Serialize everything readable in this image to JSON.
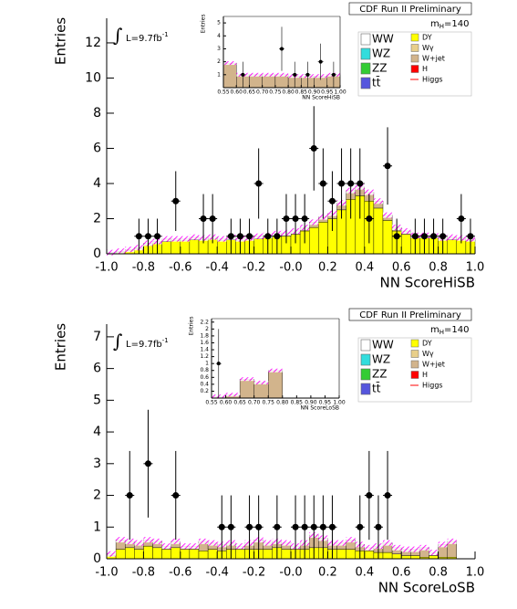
{
  "chart_data": [
    {
      "type": "histogram",
      "header": "CDF Run II Preliminary",
      "lumi": {
        "symbol": "∫",
        "text": "L=9.7fb",
        "sup": "-1"
      },
      "mass": {
        "text": "m",
        "sub": "H",
        "value": "=140"
      },
      "xlabel": "NN ScoreHiSB",
      "ylabel": "Entries",
      "xlim": [
        -1,
        1
      ],
      "ylim": [
        0,
        13.4
      ],
      "xticks": [
        {
          "value": -1,
          "label": "-1.0"
        },
        -0.8,
        -0.6,
        -0.4,
        -0.2,
        {
          "value": 0,
          "label": "-0.0"
        },
        0.2,
        0.4,
        0.6,
        0.8,
        {
          "value": 1,
          "label": "1.0"
        }
      ],
      "yticks": [
        0,
        2,
        4,
        6,
        8,
        10,
        12
      ],
      "bins": [
        -1,
        -0.95,
        -0.9,
        -0.85,
        -0.8,
        -0.75,
        -0.7,
        -0.65,
        -0.6,
        -0.55,
        -0.5,
        -0.45,
        -0.4,
        -0.35,
        -0.3,
        -0.25,
        -0.2,
        -0.15,
        -0.1,
        -0.05,
        0,
        0.05,
        0.1,
        0.15,
        0.2,
        0.25,
        0.3,
        0.35,
        0.4,
        0.45,
        0.5,
        0.55,
        0.6,
        0.65,
        0.7,
        0.75,
        0.8,
        0.85,
        0.9,
        0.95,
        1
      ],
      "series": [
        {
          "name": "DY",
          "color": "#ffff00",
          "values": [
            0.05,
            0.1,
            0.2,
            0.3,
            0.5,
            0.6,
            0.7,
            0.75,
            0.75,
            0.8,
            0.8,
            0.85,
            0.75,
            0.8,
            0.75,
            0.8,
            0.85,
            0.9,
            1.0,
            1.0,
            1.1,
            1.3,
            1.5,
            1.8,
            2.0,
            2.5,
            3.1,
            3.3,
            3.0,
            2.6,
            1.9,
            1.3,
            1.1,
            0.9,
            0.9,
            0.9,
            0.8,
            0.8,
            0.8,
            0.75
          ]
        },
        {
          "name": "W+jet",
          "color": "#d2b48c",
          "values": [
            0.02,
            0.05,
            0.05,
            0.05,
            0.1,
            0.1,
            0.15,
            0.1,
            0.1,
            0.15,
            0.1,
            0.1,
            0.1,
            0.15,
            0.1,
            0.1,
            0.15,
            0.15,
            0.15,
            0.2,
            0.2,
            0.2,
            0.3,
            0.3,
            0.3,
            0.4,
            0.5,
            0.5,
            0.5,
            0.4,
            0.3,
            0.2,
            0.2,
            0.15,
            0.15,
            0.15,
            0.1,
            0.15,
            0.1,
            0.1
          ]
        }
      ],
      "legend_extra": [
        {
          "name": "WW",
          "color": "#ffffff"
        },
        {
          "name": "WZ",
          "color": "#33dddd"
        },
        {
          "name": "ZZ",
          "color": "#33cc33"
        },
        {
          "name": "tt̄",
          "color": "#5555dd"
        },
        {
          "name": "Wγ",
          "color": "#e8cf8a"
        },
        {
          "name": "H",
          "color": "#ff0000"
        },
        {
          "name": "Higgs",
          "color": "#ff0000",
          "marker": "line"
        }
      ],
      "points": {
        "x": [
          -0.825,
          -0.775,
          -0.725,
          -0.625,
          -0.475,
          -0.425,
          -0.325,
          -0.275,
          -0.225,
          -0.175,
          -0.125,
          -0.075,
          -0.025,
          0.025,
          0.075,
          0.125,
          0.175,
          0.225,
          0.275,
          0.325,
          0.375,
          0.425,
          0.525,
          0.575,
          0.675,
          0.725,
          0.775,
          0.825,
          0.925,
          0.975
        ],
        "values": [
          1,
          1,
          1,
          3,
          2,
          2,
          1,
          1,
          1,
          4,
          1,
          1,
          2,
          2,
          2,
          6,
          4,
          3,
          4,
          4,
          4,
          2,
          5,
          1,
          1,
          1,
          1,
          1,
          2,
          1
        ],
        "errors": [
          1.0,
          1.0,
          1.0,
          1.7,
          1.4,
          1.4,
          1.0,
          1.0,
          1.0,
          2.0,
          1.0,
          1.0,
          1.4,
          1.4,
          1.4,
          2.4,
          2.0,
          1.7,
          2.0,
          2.0,
          2.0,
          1.4,
          2.2,
          1.0,
          1.0,
          1.0,
          1.0,
          1.0,
          1.4,
          1.0
        ]
      },
      "inset": {
        "xlabel": "NN ScoreHiSB",
        "ylabel": "Entries",
        "xlim": [
          0.55,
          1
        ],
        "ylim": [
          0,
          5.5
        ],
        "xticks": [
          0.55,
          {
            "value": 0.6,
            "label": "0.60"
          },
          0.65,
          {
            "value": 0.7,
            "label": "0.70"
          },
          0.75,
          {
            "value": 0.8,
            "label": "0.80"
          },
          0.85,
          {
            "value": 0.9,
            "label": "0.90"
          },
          0.95,
          {
            "value": 1,
            "label": "1.00"
          }
        ],
        "yticks": [
          1,
          2,
          3,
          4,
          5
        ],
        "bins": [
          0.55,
          0.6,
          0.65,
          0.7,
          0.75,
          0.8,
          0.85,
          0.9,
          0.95,
          1
        ],
        "series": [
          {
            "color": "#d2b48c",
            "values": [
              1.9,
              1.0,
              1.0,
              1.0,
              1.0,
              0.9,
              0.9,
              0.9,
              1.0
            ]
          }
        ],
        "points": {
          "x": [
            0.625,
            0.775,
            0.825,
            0.875,
            0.925,
            0.975
          ],
          "values": [
            1,
            3,
            1,
            1,
            2,
            1
          ],
          "errors": [
            1.0,
            1.7,
            1.0,
            1.0,
            1.4,
            1.0
          ]
        }
      }
    },
    {
      "type": "histogram",
      "header": "CDF Run II Preliminary",
      "lumi": {
        "symbol": "∫",
        "text": "L=9.7fb",
        "sup": "-1"
      },
      "mass": {
        "text": "m",
        "sub": "H",
        "value": "=140"
      },
      "xlabel": "NN ScoreLoSB",
      "ylabel": "Entries",
      "xlim": [
        -1,
        1
      ],
      "ylim": [
        0,
        7.4
      ],
      "xticks": [
        {
          "value": -1,
          "label": "-1.0"
        },
        -0.8,
        -0.6,
        -0.4,
        -0.2,
        {
          "value": 0,
          "label": "-0.0"
        },
        0.2,
        0.4,
        0.6,
        0.8,
        {
          "value": 1,
          "label": "1.0"
        }
      ],
      "yticks": [
        0,
        1,
        2,
        3,
        4,
        5,
        6,
        7
      ],
      "bins": [
        -1,
        -0.95,
        -0.9,
        -0.85,
        -0.8,
        -0.75,
        -0.7,
        -0.65,
        -0.6,
        -0.55,
        -0.5,
        -0.45,
        -0.4,
        -0.35,
        -0.3,
        -0.25,
        -0.2,
        -0.15,
        -0.1,
        -0.05,
        0,
        0.05,
        0.1,
        0.15,
        0.2,
        0.25,
        0.3,
        0.35,
        0.4,
        0.45,
        0.5,
        0.55,
        0.6,
        0.65,
        0.7,
        0.75,
        0.8,
        0.85,
        0.9,
        0.95,
        1
      ],
      "series": [
        {
          "name": "DY",
          "color": "#ffff00",
          "values": [
            0.1,
            0.3,
            0.35,
            0.3,
            0.4,
            0.35,
            0.3,
            0.35,
            0.3,
            0.3,
            0.25,
            0.3,
            0.25,
            0.3,
            0.3,
            0.3,
            0.3,
            0.3,
            0.35,
            0.3,
            0.3,
            0.3,
            0.35,
            0.35,
            0.3,
            0.3,
            0.3,
            0.25,
            0.25,
            0.2,
            0.2,
            0.15,
            0.1,
            0.1,
            0.05,
            0.1,
            0.05,
            0.05,
            0,
            0
          ]
        },
        {
          "name": "W+jet",
          "color": "#d2b48c",
          "values": [
            0.05,
            0.3,
            0.2,
            0.2,
            0.2,
            0.2,
            0.1,
            0.2,
            0.1,
            0.1,
            0.3,
            0.2,
            0.2,
            0.2,
            0.1,
            0.2,
            0.3,
            0.2,
            0.2,
            0.2,
            0.1,
            0.2,
            0.4,
            0.3,
            0.2,
            0.2,
            0.3,
            0.2,
            0.1,
            0.2,
            0.3,
            0.2,
            0.2,
            0.2,
            0.3,
            0.1,
            0.4,
            0.5,
            0,
            0
          ]
        }
      ],
      "legend_extra": [
        {
          "name": "WW",
          "color": "#ffffff"
        },
        {
          "name": "WZ",
          "color": "#33dddd"
        },
        {
          "name": "ZZ",
          "color": "#33cc33"
        },
        {
          "name": "tt̄",
          "color": "#5555dd"
        },
        {
          "name": "Wγ",
          "color": "#e8cf8a"
        },
        {
          "name": "H",
          "color": "#ff0000"
        },
        {
          "name": "Higgs",
          "color": "#ff0000",
          "marker": "line"
        }
      ],
      "points": {
        "x": [
          -0.875,
          -0.775,
          -0.625,
          -0.375,
          -0.325,
          -0.225,
          -0.175,
          -0.075,
          0.025,
          0.075,
          0.125,
          0.175,
          0.225,
          0.375,
          0.425,
          0.475,
          0.525
        ],
        "values": [
          2,
          3,
          2,
          1,
          1,
          1,
          1,
          1,
          1,
          1,
          1,
          1,
          1,
          1,
          2,
          1,
          2
        ],
        "errors": [
          1.4,
          1.7,
          1.4,
          1.0,
          1.0,
          1.0,
          1.0,
          1.0,
          1.0,
          1.0,
          1.0,
          1.0,
          1.0,
          1.0,
          1.4,
          1.0,
          1.4
        ]
      },
      "inset": {
        "xlabel": "NN ScoreLoSB",
        "ylabel": "Entries",
        "xlim": [
          0.55,
          1
        ],
        "ylim": [
          0,
          2.3
        ],
        "xticks": [
          0.55,
          {
            "value": 0.6,
            "label": "0.60"
          },
          0.65,
          {
            "value": 0.7,
            "label": "0.70"
          },
          0.75,
          {
            "value": 0.8,
            "label": "0.80"
          },
          0.85,
          {
            "value": 0.9,
            "label": "0.90"
          },
          0.95,
          {
            "value": 1,
            "label": "1.00"
          }
        ],
        "yticks": [
          0.2,
          0.4,
          0.6,
          0.8,
          1,
          1.2,
          1.4,
          1.6,
          1.8,
          2,
          2.2
        ],
        "bins": [
          0.55,
          0.6,
          0.65,
          0.7,
          0.75,
          0.8,
          0.85,
          0.9,
          0.95,
          1
        ],
        "series": [
          {
            "color": "#d2b48c",
            "values": [
              0.05,
              0.1,
              0.55,
              0.45,
              0.8,
              0,
              0,
              0,
              0
            ]
          }
        ],
        "points": {
          "x": [
            0.575
          ],
          "values": [
            1.0
          ],
          "errors": [
            1.0
          ]
        }
      }
    }
  ]
}
